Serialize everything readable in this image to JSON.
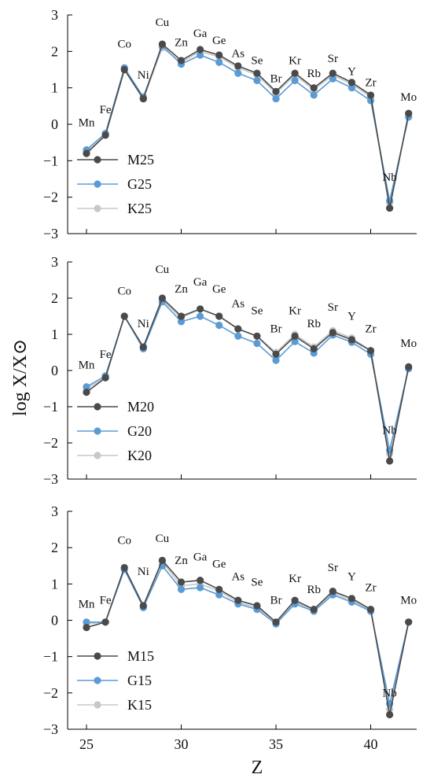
{
  "chart_data": {
    "type": "line",
    "xlabel": "Z",
    "ylabel": "log X/X⊙",
    "xlim": [
      24.2,
      43.1
    ],
    "ylim": [
      -3,
      3
    ],
    "xticks": [
      25,
      30,
      35,
      40
    ],
    "yticks": [
      3,
      2,
      1,
      0,
      -1,
      -2,
      -3
    ],
    "ytick_labels": [
      "3",
      "2",
      "1",
      "0",
      "−1",
      "−2",
      "−3"
    ],
    "legend_position": "lower-left",
    "colors": {
      "M": "#4a4a4a",
      "G": "#5b9bd5",
      "K": "#c8c8c8"
    },
    "x": [
      25,
      26,
      27,
      28,
      29,
      30,
      31,
      32,
      33,
      34,
      35,
      36,
      37,
      38,
      39,
      40,
      41,
      42
    ],
    "panels": [
      {
        "element_labels": [
          {
            "text": "Mn",
            "z": 25,
            "y": -0.05
          },
          {
            "text": "Fe",
            "z": 26,
            "y": 0.3
          },
          {
            "text": "Co",
            "z": 27,
            "y": 2.1
          },
          {
            "text": "Ni",
            "z": 28,
            "y": 1.25
          },
          {
            "text": "Cu",
            "z": 29,
            "y": 2.7
          },
          {
            "text": "Zn",
            "z": 30,
            "y": 2.15
          },
          {
            "text": "Ga",
            "z": 31,
            "y": 2.4
          },
          {
            "text": "Ge",
            "z": 32,
            "y": 2.2
          },
          {
            "text": "As",
            "z": 33,
            "y": 1.85
          },
          {
            "text": "Se",
            "z": 34,
            "y": 1.65
          },
          {
            "text": "Br",
            "z": 35,
            "y": 1.15
          },
          {
            "text": "Kr",
            "z": 36,
            "y": 1.65
          },
          {
            "text": "Rb",
            "z": 37,
            "y": 1.3
          },
          {
            "text": "Sr",
            "z": 38,
            "y": 1.7
          },
          {
            "text": "Y",
            "z": 39,
            "y": 1.35
          },
          {
            "text": "Zr",
            "z": 40,
            "y": 1.05
          },
          {
            "text": "Nb",
            "z": 41,
            "y": -1.55
          },
          {
            "text": "Mo",
            "z": 42,
            "y": 0.65
          }
        ],
        "series": [
          {
            "name": "M25",
            "values": [
              -0.8,
              -0.3,
              1.5,
              0.7,
              2.2,
              1.75,
              2.05,
              1.9,
              1.6,
              1.4,
              0.9,
              1.4,
              1.0,
              1.4,
              1.15,
              0.8,
              -2.3,
              0.3
            ]
          },
          {
            "name": "G25",
            "values": [
              -0.7,
              -0.25,
              1.55,
              0.75,
              2.15,
              1.65,
              1.9,
              1.7,
              1.4,
              1.2,
              0.7,
              1.2,
              0.8,
              1.25,
              1.0,
              0.65,
              -2.1,
              0.2
            ]
          },
          {
            "name": "K25",
            "values": [
              -0.75,
              -0.3,
              1.5,
              0.7,
              2.1,
              1.7,
              2.0,
              1.85,
              1.55,
              1.35,
              0.85,
              1.35,
              0.95,
              1.35,
              1.1,
              0.75,
              -2.15,
              0.25
            ]
          }
        ]
      },
      {
        "element_labels": [
          {
            "text": "Mn",
            "z": 25,
            "y": 0.05
          },
          {
            "text": "Fe",
            "z": 26,
            "y": 0.35
          },
          {
            "text": "Co",
            "z": 27,
            "y": 2.1
          },
          {
            "text": "Ni",
            "z": 28,
            "y": 1.2
          },
          {
            "text": "Cu",
            "z": 29,
            "y": 2.7
          },
          {
            "text": "Zn",
            "z": 30,
            "y": 2.15
          },
          {
            "text": "Ga",
            "z": 31,
            "y": 2.35
          },
          {
            "text": "Ge",
            "z": 32,
            "y": 2.15
          },
          {
            "text": "As",
            "z": 33,
            "y": 1.75
          },
          {
            "text": "Se",
            "z": 34,
            "y": 1.55
          },
          {
            "text": "Br",
            "z": 35,
            "y": 1.05
          },
          {
            "text": "Kr",
            "z": 36,
            "y": 1.55
          },
          {
            "text": "Rb",
            "z": 37,
            "y": 1.2
          },
          {
            "text": "Sr",
            "z": 38,
            "y": 1.65
          },
          {
            "text": "Y",
            "z": 39,
            "y": 1.4
          },
          {
            "text": "Zr",
            "z": 40,
            "y": 1.05
          },
          {
            "text": "Nb",
            "z": 41,
            "y": -1.75
          },
          {
            "text": "Mo",
            "z": 42,
            "y": 0.65
          }
        ],
        "series": [
          {
            "name": "M20",
            "values": [
              -0.6,
              -0.2,
              1.5,
              0.65,
              2.0,
              1.5,
              1.7,
              1.5,
              1.15,
              0.95,
              0.45,
              0.95,
              0.6,
              1.05,
              0.85,
              0.55,
              -2.5,
              0.1
            ]
          },
          {
            "name": "G20",
            "values": [
              -0.45,
              -0.15,
              1.5,
              0.6,
              1.9,
              1.35,
              1.5,
              1.25,
              0.95,
              0.75,
              0.28,
              0.8,
              0.48,
              0.98,
              0.78,
              0.45,
              -2.2,
              0.05
            ]
          },
          {
            "name": "K20",
            "values": [
              -0.5,
              -0.2,
              1.5,
              0.65,
              1.95,
              1.45,
              1.7,
              1.5,
              1.15,
              0.95,
              0.5,
              1.0,
              0.65,
              1.1,
              0.9,
              0.55,
              -2.3,
              0.1
            ]
          }
        ]
      },
      {
        "element_labels": [
          {
            "text": "Mn",
            "z": 25,
            "y": 0.35
          },
          {
            "text": "Fe",
            "z": 26,
            "y": 0.45
          },
          {
            "text": "Co",
            "z": 27,
            "y": 2.1
          },
          {
            "text": "Ni",
            "z": 28,
            "y": 1.25
          },
          {
            "text": "Cu",
            "z": 29,
            "y": 2.15
          },
          {
            "text": "Zn",
            "z": 30,
            "y": 1.55
          },
          {
            "text": "Ga",
            "z": 31,
            "y": 1.65
          },
          {
            "text": "Ge",
            "z": 32,
            "y": 1.45
          },
          {
            "text": "As",
            "z": 33,
            "y": 1.1
          },
          {
            "text": "Se",
            "z": 34,
            "y": 0.95
          },
          {
            "text": "Br",
            "z": 35,
            "y": 0.45
          },
          {
            "text": "Kr",
            "z": 36,
            "y": 1.05
          },
          {
            "text": "Rb",
            "z": 37,
            "y": 0.75
          },
          {
            "text": "Sr",
            "z": 38,
            "y": 1.35
          },
          {
            "text": "Y",
            "z": 39,
            "y": 1.1
          },
          {
            "text": "Zr",
            "z": 40,
            "y": 0.8
          },
          {
            "text": "Nb",
            "z": 41,
            "y": -2.1
          },
          {
            "text": "Mo",
            "z": 42,
            "y": 0.45
          }
        ],
        "series": [
          {
            "name": "M15",
            "values": [
              -0.2,
              -0.05,
              1.45,
              0.4,
              1.65,
              1.05,
              1.1,
              0.85,
              0.55,
              0.4,
              -0.05,
              0.55,
              0.3,
              0.8,
              0.6,
              0.3,
              -2.6,
              -0.05
            ]
          },
          {
            "name": "G15",
            "values": [
              -0.05,
              -0.05,
              1.4,
              0.35,
              1.5,
              0.85,
              0.9,
              0.7,
              0.45,
              0.3,
              -0.1,
              0.45,
              0.25,
              0.7,
              0.5,
              0.25,
              -2.3,
              -0.05
            ]
          },
          {
            "name": "K15",
            "values": [
              -0.1,
              -0.05,
              1.45,
              0.4,
              1.6,
              0.95,
              1.0,
              0.8,
              0.5,
              0.35,
              -0.05,
              0.5,
              0.28,
              0.75,
              0.55,
              0.28,
              -2.45,
              -0.05
            ]
          }
        ]
      }
    ]
  }
}
